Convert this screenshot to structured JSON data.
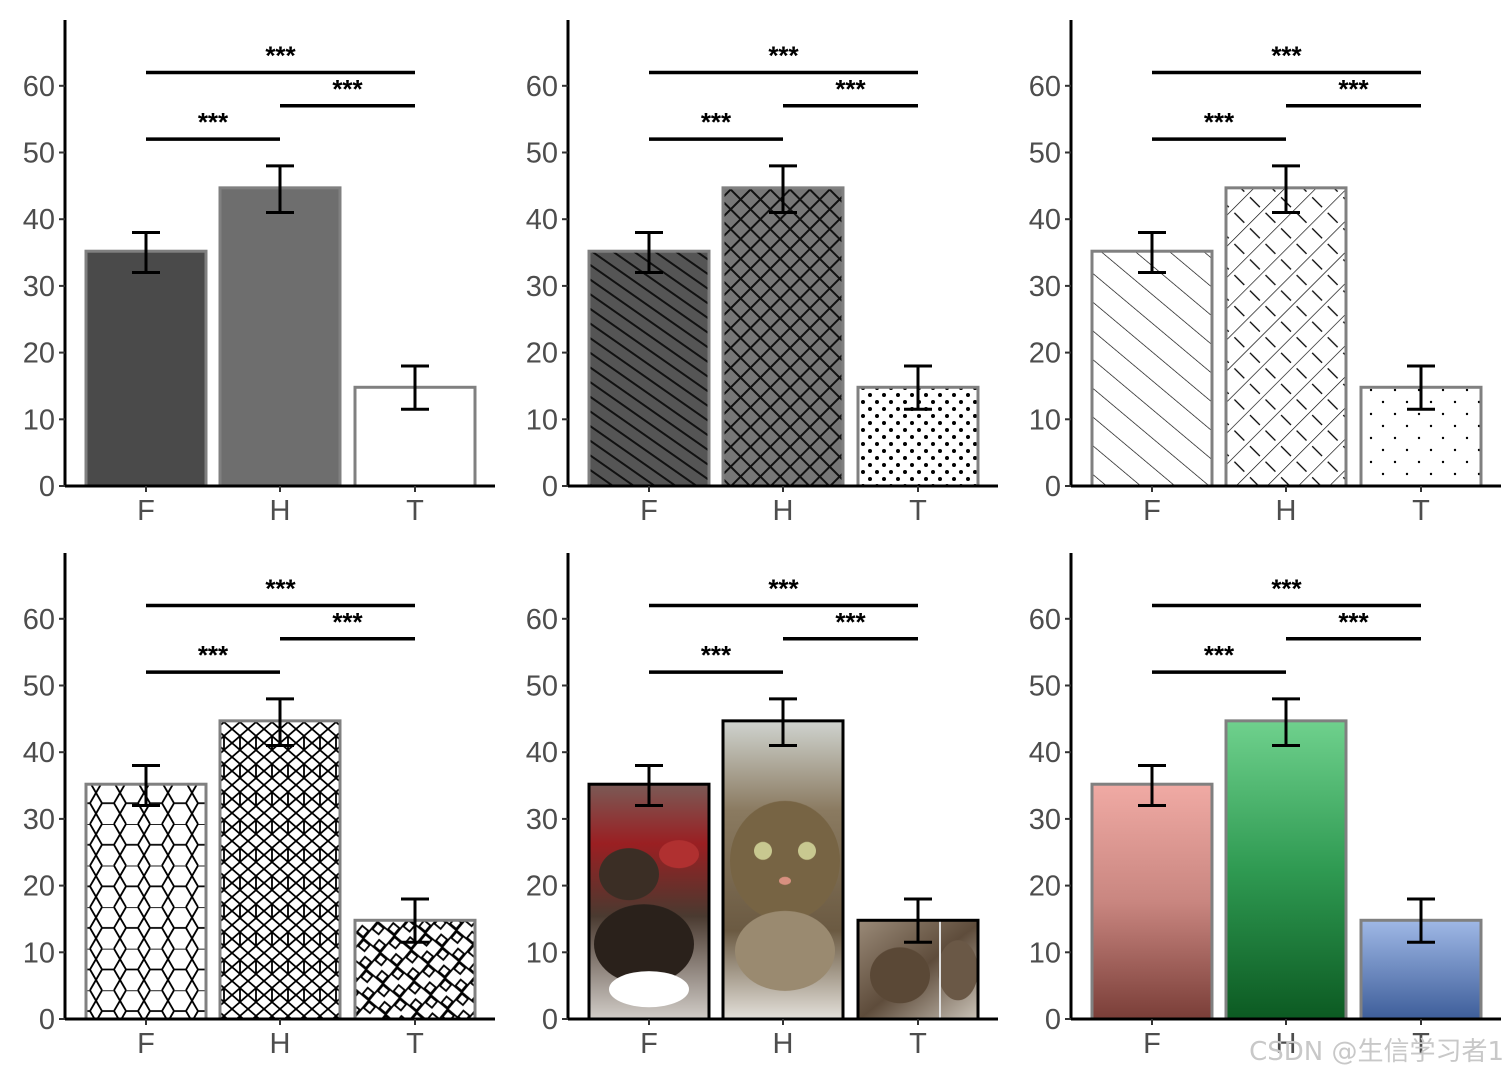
{
  "chart_data": [
    {
      "panel": 1,
      "type": "bar",
      "style": "solid-gray",
      "categories": [
        "F",
        "H",
        "T"
      ],
      "values": [
        35.2,
        44.7,
        14.8
      ],
      "error": [
        [
          32,
          38
        ],
        [
          41,
          48
        ],
        [
          11.5,
          18
        ]
      ],
      "ylim": [
        0,
        70
      ],
      "yticks": [
        0,
        10,
        20,
        30,
        40,
        50,
        60
      ],
      "fills": [
        "#4a4a4a",
        "#6e6e6e",
        "#ffffff"
      ],
      "significance": [
        {
          "from": "F",
          "to": "H",
          "label": "***",
          "y": 52
        },
        {
          "from": "H",
          "to": "T",
          "label": "***",
          "y": 57
        },
        {
          "from": "F",
          "to": "T",
          "label": "***",
          "y": 62
        }
      ]
    },
    {
      "panel": 2,
      "type": "bar",
      "style": "dark-patterns",
      "categories": [
        "F",
        "H",
        "T"
      ],
      "values": [
        35.2,
        44.7,
        14.8
      ],
      "error": [
        [
          32,
          38
        ],
        [
          41,
          48
        ],
        [
          11.5,
          18
        ]
      ],
      "ylim": [
        0,
        70
      ],
      "yticks": [
        0,
        10,
        20,
        30,
        40,
        50,
        60
      ],
      "fills": [
        "stripe-dark",
        "crosshatch-dark",
        "dots"
      ],
      "significance": [
        {
          "from": "F",
          "to": "H",
          "label": "***",
          "y": 52
        },
        {
          "from": "H",
          "to": "T",
          "label": "***",
          "y": 57
        },
        {
          "from": "F",
          "to": "T",
          "label": "***",
          "y": 62
        }
      ]
    },
    {
      "panel": 3,
      "type": "bar",
      "style": "line-patterns",
      "categories": [
        "F",
        "H",
        "T"
      ],
      "values": [
        35.2,
        44.7,
        14.8
      ],
      "error": [
        [
          32,
          38
        ],
        [
          41,
          48
        ],
        [
          11.5,
          18
        ]
      ],
      "ylim": [
        0,
        70
      ],
      "yticks": [
        0,
        10,
        20,
        30,
        40,
        50,
        60
      ],
      "fills": [
        "diag-lines",
        "dashed-crosshatch",
        "sparse-dots"
      ],
      "significance": [
        {
          "from": "F",
          "to": "H",
          "label": "***",
          "y": 52
        },
        {
          "from": "H",
          "to": "T",
          "label": "***",
          "y": 57
        },
        {
          "from": "F",
          "to": "T",
          "label": "***",
          "y": 62
        }
      ]
    },
    {
      "panel": 4,
      "type": "bar",
      "style": "geometric-tiles",
      "categories": [
        "F",
        "H",
        "T"
      ],
      "values": [
        35.2,
        44.7,
        14.8
      ],
      "error": [
        [
          32,
          38
        ],
        [
          41,
          48
        ],
        [
          11.5,
          18
        ]
      ],
      "ylim": [
        0,
        70
      ],
      "yticks": [
        0,
        10,
        20,
        30,
        40,
        50,
        60
      ],
      "fills": [
        "hexagon",
        "diamond-lattice",
        "basketweave"
      ],
      "significance": [
        {
          "from": "F",
          "to": "H",
          "label": "***",
          "y": 52
        },
        {
          "from": "H",
          "to": "T",
          "label": "***",
          "y": 57
        },
        {
          "from": "F",
          "to": "T",
          "label": "***",
          "y": 62
        }
      ]
    },
    {
      "panel": 5,
      "type": "bar",
      "style": "kitten-photos",
      "categories": [
        "F",
        "H",
        "T"
      ],
      "values": [
        35.2,
        44.7,
        14.8
      ],
      "error": [
        [
          32,
          38
        ],
        [
          41,
          48
        ],
        [
          11.5,
          18
        ]
      ],
      "ylim": [
        0,
        70
      ],
      "yticks": [
        0,
        10,
        20,
        30,
        40,
        50,
        60
      ],
      "fills": [
        "kitten-photo-1",
        "kitten-photo-2",
        "kitten-photo-3"
      ],
      "significance": [
        {
          "from": "F",
          "to": "H",
          "label": "***",
          "y": 52
        },
        {
          "from": "H",
          "to": "T",
          "label": "***",
          "y": 57
        },
        {
          "from": "F",
          "to": "T",
          "label": "***",
          "y": 62
        }
      ]
    },
    {
      "panel": 6,
      "type": "bar",
      "style": "gradient-textures",
      "categories": [
        "F",
        "H",
        "T"
      ],
      "values": [
        35.2,
        44.7,
        14.8
      ],
      "error": [
        [
          32,
          38
        ],
        [
          41,
          48
        ],
        [
          11.5,
          18
        ]
      ],
      "ylim": [
        0,
        70
      ],
      "yticks": [
        0,
        10,
        20,
        30,
        40,
        50,
        60
      ],
      "fills": [
        "grad-red",
        "grad-green",
        "grad-blue"
      ],
      "significance": [
        {
          "from": "F",
          "to": "H",
          "label": "***",
          "y": 52
        },
        {
          "from": "H",
          "to": "T",
          "label": "***",
          "y": 57
        },
        {
          "from": "F",
          "to": "T",
          "label": "***",
          "y": 62
        }
      ]
    }
  ],
  "colors": {
    "axis": "#000000",
    "bar_border": "#808080",
    "photo_border": "#000000",
    "tick_text": "#4d4d4d"
  },
  "watermark": "CSDN @生信学习者1"
}
